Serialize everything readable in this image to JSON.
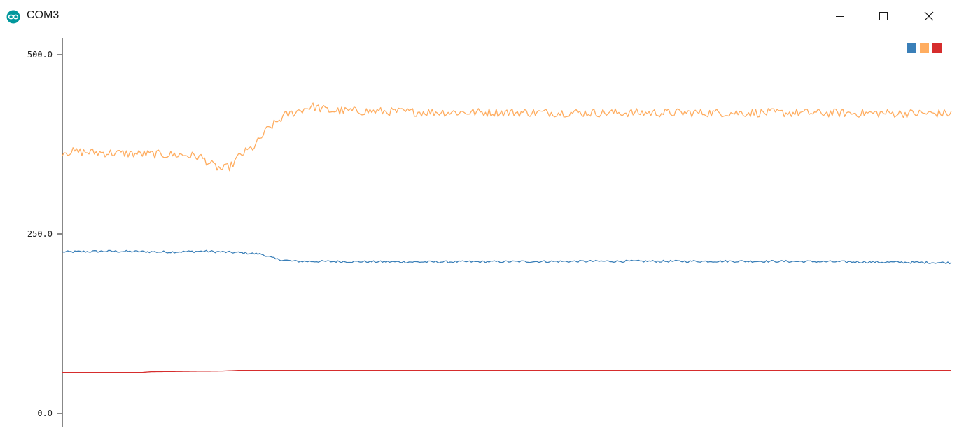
{
  "window": {
    "title": "COM3",
    "icon": "arduino-infinity-icon",
    "controls": [
      "minimize-icon",
      "maximize-icon",
      "close-icon"
    ]
  },
  "chart_data": {
    "type": "line",
    "xlim": [
      0,
      500
    ],
    "ylim": [
      0,
      500
    ],
    "yticks": [
      {
        "value": 0,
        "label": "0.0"
      },
      {
        "value": 250,
        "label": "250.0"
      },
      {
        "value": 500,
        "label": "500.0"
      }
    ],
    "legend": "top-right",
    "grid": false,
    "series": [
      {
        "color": "#3a7fb8",
        "keyframes": [
          [
            0,
            225
          ],
          [
            25,
            226
          ],
          [
            60,
            225
          ],
          [
            80,
            226
          ],
          [
            100,
            224
          ],
          [
            112,
            222
          ],
          [
            120,
            215
          ],
          [
            130,
            212
          ],
          [
            200,
            211
          ],
          [
            300,
            212
          ],
          [
            400,
            212
          ],
          [
            500,
            210
          ]
        ],
        "noise": 1.5
      },
      {
        "color": "#ffad60",
        "keyframes": [
          [
            0,
            365
          ],
          [
            40,
            362
          ],
          [
            70,
            360
          ],
          [
            78,
            357
          ],
          [
            85,
            345
          ],
          [
            90,
            340
          ],
          [
            95,
            345
          ],
          [
            100,
            360
          ],
          [
            108,
            372
          ],
          [
            115,
            395
          ],
          [
            125,
            415
          ],
          [
            140,
            428
          ],
          [
            150,
            422
          ],
          [
            200,
            420
          ],
          [
            300,
            419
          ],
          [
            400,
            419
          ],
          [
            500,
            418
          ]
        ],
        "noise": 6
      },
      {
        "color": "#d62d2d",
        "keyframes": [
          [
            0,
            57
          ],
          [
            45,
            57
          ],
          [
            50,
            58
          ],
          [
            90,
            59
          ],
          [
            100,
            60
          ],
          [
            500,
            60
          ]
        ],
        "noise": 0
      }
    ]
  }
}
